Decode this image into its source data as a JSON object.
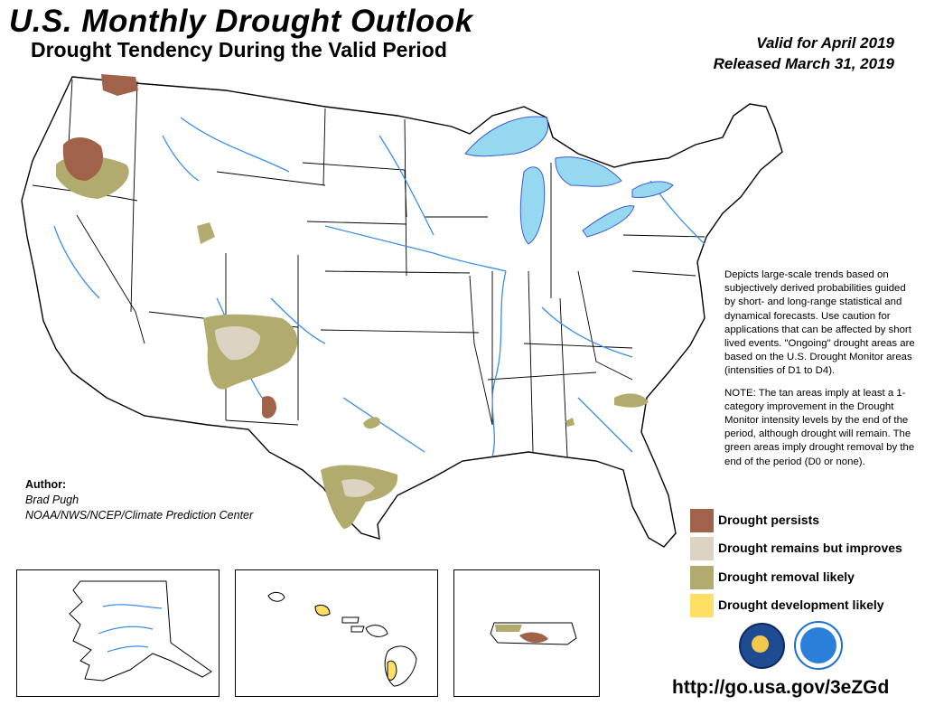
{
  "header": {
    "title": "U.S. Monthly Drought Outlook",
    "subtitle": "Drought Tendency During the Valid Period",
    "valid": "Valid for April 2019",
    "released": "Released March 31, 2019"
  },
  "description": {
    "para1": "Depicts large-scale trends based on subjectively derived probabilities guided by short- and long-range statistical and dynamical forecasts. Use caution for applications that can be affected by short lived events. \"Ongoing\" drought areas are based on the U.S. Drought Monitor areas (intensities of D1 to D4).",
    "para2": "NOTE: The tan areas imply at least a 1-category improvement in the Drought Monitor intensity levels by the end of the period, although drought will remain. The green areas imply drought removal by the end of the period (D0 or none)."
  },
  "author": {
    "label": "Author:",
    "name": "Brad Pugh",
    "org": "NOAA/NWS/NCEP/Climate Prediction Center"
  },
  "legend": [
    {
      "label": "Drought persists",
      "color": "#a0634a"
    },
    {
      "label": "Drought remains but improves",
      "color": "#ddd3c3"
    },
    {
      "label": "Drought removal likely",
      "color": "#b1ac6e"
    },
    {
      "label": "Drought development likely",
      "color": "#ffe065"
    }
  ],
  "url": "http://go.usa.gov/3eZGd",
  "colors": {
    "persists": "#a0634a",
    "improves": "#ddd3c3",
    "removal": "#b1ac6e",
    "development": "#ffe065",
    "water": "#96d8ef",
    "river": "#3a8ee8"
  },
  "logos": [
    "doc-seal-logo",
    "noaa-logo"
  ]
}
